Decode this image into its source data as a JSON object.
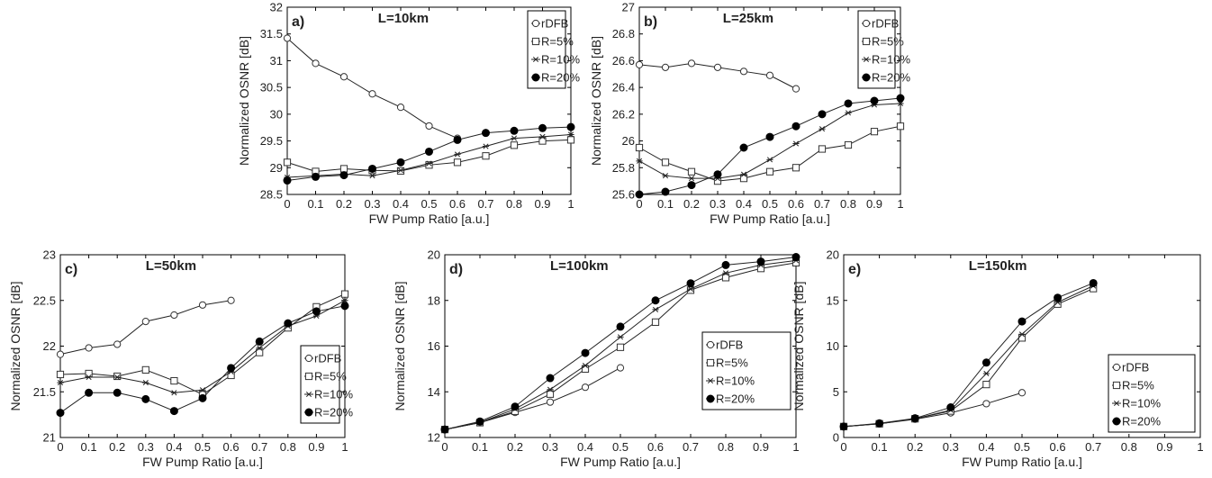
{
  "chart_data": [
    {
      "type": "line",
      "panel_label": "a)",
      "title": "L=10km",
      "xlabel": "FW Pump Ratio [a.u.]",
      "ylabel": "Normalized OSNR [dB]",
      "xlim": [
        0,
        1
      ],
      "ylim": [
        28.5,
        32
      ],
      "xticks": [
        "0",
        "0.1",
        "0.2",
        "0.3",
        "0.4",
        "0.5",
        "0.6",
        "0.7",
        "0.8",
        "0.9",
        "1"
      ],
      "yticks": [
        "28.5",
        "29",
        "29.5",
        "30",
        "30.5",
        "31",
        "31.5",
        "32"
      ],
      "grid": false,
      "legend_position": "top-right",
      "series": [
        {
          "name": "rDFB",
          "marker": "circle-open",
          "x": [
            0,
            0.1,
            0.2,
            0.3,
            0.4,
            0.5,
            0.6
          ],
          "y": [
            31.42,
            30.95,
            30.7,
            30.38,
            30.13,
            29.78,
            29.55
          ]
        },
        {
          "name": "R=5%",
          "marker": "square-open",
          "x": [
            0,
            0.1,
            0.2,
            0.3,
            0.4,
            0.5,
            0.6,
            0.7,
            0.8,
            0.9,
            1
          ],
          "y": [
            29.1,
            28.93,
            28.98,
            28.95,
            28.94,
            29.05,
            29.1,
            29.22,
            29.42,
            29.5,
            29.52
          ]
        },
        {
          "name": "R=10%",
          "marker": "star",
          "x": [
            0,
            0.1,
            0.2,
            0.3,
            0.4,
            0.5,
            0.6,
            0.7,
            0.8,
            0.9,
            1
          ],
          "y": [
            28.82,
            28.85,
            28.88,
            28.85,
            28.95,
            29.08,
            29.25,
            29.4,
            29.55,
            29.58,
            29.62
          ]
        },
        {
          "name": "R=20%",
          "marker": "circle-filled",
          "x": [
            0,
            0.1,
            0.2,
            0.3,
            0.4,
            0.5,
            0.6,
            0.7,
            0.8,
            0.9,
            1
          ],
          "y": [
            28.76,
            28.83,
            28.86,
            28.98,
            29.1,
            29.3,
            29.52,
            29.65,
            29.69,
            29.74,
            29.76
          ]
        }
      ]
    },
    {
      "type": "line",
      "panel_label": "b)",
      "title": "L=25km",
      "xlabel": "FW Pump Ratio [a.u.]",
      "ylabel": "Normalized OSNR [dB]",
      "xlim": [
        0,
        1
      ],
      "ylim": [
        25.6,
        27
      ],
      "xticks": [
        "0",
        "0.1",
        "0.2",
        "0.3",
        "0.4",
        "0.5",
        "0.6",
        "0.7",
        "0.8",
        "0.9",
        "1"
      ],
      "yticks": [
        "25.6",
        "25.8",
        "26",
        "26.2",
        "26.4",
        "26.6",
        "26.8",
        "27"
      ],
      "grid": false,
      "legend_position": "top-right",
      "series": [
        {
          "name": "rDFB",
          "marker": "circle-open",
          "x": [
            0,
            0.1,
            0.2,
            0.3,
            0.4,
            0.5,
            0.6
          ],
          "y": [
            26.57,
            26.55,
            26.58,
            26.55,
            26.52,
            26.49,
            26.39
          ]
        },
        {
          "name": "R=5%",
          "marker": "square-open",
          "x": [
            0,
            0.1,
            0.2,
            0.3,
            0.4,
            0.5,
            0.6,
            0.7,
            0.8,
            0.9,
            1
          ],
          "y": [
            25.95,
            25.84,
            25.77,
            25.7,
            25.72,
            25.77,
            25.8,
            25.94,
            25.97,
            26.07,
            26.11
          ]
        },
        {
          "name": "R=10%",
          "marker": "star",
          "x": [
            0,
            0.1,
            0.2,
            0.3,
            0.4,
            0.5,
            0.6,
            0.7,
            0.8,
            0.9,
            1
          ],
          "y": [
            25.85,
            25.74,
            25.72,
            25.72,
            25.75,
            25.86,
            25.98,
            26.09,
            26.21,
            26.27,
            26.28
          ]
        },
        {
          "name": "R=20%",
          "marker": "circle-filled",
          "x": [
            0,
            0.1,
            0.2,
            0.3,
            0.4,
            0.5,
            0.6,
            0.7,
            0.8,
            0.9,
            1
          ],
          "y": [
            25.6,
            25.62,
            25.67,
            25.75,
            25.95,
            26.03,
            26.11,
            26.2,
            26.28,
            26.3,
            26.32
          ]
        }
      ]
    },
    {
      "type": "line",
      "panel_label": "c)",
      "title": "L=50km",
      "xlabel": "FW Pump Ratio [a.u.]",
      "ylabel": "Normalized OSNR [dB]",
      "xlim": [
        0,
        1
      ],
      "ylim": [
        21,
        23
      ],
      "xticks": [
        "0",
        "0.1",
        "0.2",
        "0.3",
        "0.4",
        "0.5",
        "0.6",
        "0.7",
        "0.8",
        "0.9",
        "1"
      ],
      "yticks": [
        "21",
        "21.5",
        "22",
        "22.5",
        "23"
      ],
      "grid": false,
      "legend_position": "bottom-right",
      "series": [
        {
          "name": "rDFB",
          "marker": "circle-open",
          "x": [
            0,
            0.1,
            0.2,
            0.3,
            0.4,
            0.5,
            0.6
          ],
          "y": [
            21.91,
            21.98,
            22.02,
            22.27,
            22.34,
            22.45,
            22.5
          ]
        },
        {
          "name": "R=5%",
          "marker": "square-open",
          "x": [
            0,
            0.1,
            0.2,
            0.3,
            0.4,
            0.5,
            0.6,
            0.7,
            0.8,
            0.9,
            1
          ],
          "y": [
            21.69,
            21.7,
            21.67,
            21.74,
            21.62,
            21.47,
            21.68,
            21.93,
            22.2,
            22.43,
            22.57
          ]
        },
        {
          "name": "R=10%",
          "marker": "star",
          "x": [
            0,
            0.1,
            0.2,
            0.3,
            0.4,
            0.5,
            0.6,
            0.7,
            0.8,
            0.9,
            1
          ],
          "y": [
            21.6,
            21.66,
            21.66,
            21.6,
            21.49,
            21.52,
            21.72,
            21.98,
            22.22,
            22.33,
            22.5
          ]
        },
        {
          "name": "R=20%",
          "marker": "circle-filled",
          "x": [
            0,
            0.1,
            0.2,
            0.3,
            0.4,
            0.5,
            0.6,
            0.7,
            0.8,
            0.9,
            1
          ],
          "y": [
            21.27,
            21.49,
            21.49,
            21.42,
            21.29,
            21.43,
            21.76,
            22.05,
            22.25,
            22.38,
            22.44
          ]
        }
      ]
    },
    {
      "type": "line",
      "panel_label": "d)",
      "title": "L=100km",
      "xlabel": "FW Pump Ratio [a.u.]",
      "ylabel": "Normalized OSNR [dB]",
      "xlim": [
        0,
        1
      ],
      "ylim": [
        12,
        20
      ],
      "xticks": [
        "0",
        "0.1",
        "0.2",
        "0.3",
        "0.4",
        "0.5",
        "0.6",
        "0.7",
        "0.8",
        "0.9",
        "1"
      ],
      "yticks": [
        "12",
        "14",
        "16",
        "18",
        "20"
      ],
      "grid": false,
      "legend_position": "center-right",
      "series": [
        {
          "name": "rDFB",
          "marker": "circle-open",
          "x": [
            0,
            0.1,
            0.2,
            0.3,
            0.4,
            0.5
          ],
          "y": [
            12.35,
            12.65,
            13.1,
            13.55,
            14.2,
            15.05
          ]
        },
        {
          "name": "R=5%",
          "marker": "square-open",
          "x": [
            0,
            0.1,
            0.2,
            0.3,
            0.4,
            0.5,
            0.6,
            0.7,
            0.8,
            0.9,
            1
          ],
          "y": [
            12.35,
            12.65,
            13.15,
            13.9,
            15.0,
            15.95,
            17.05,
            18.45,
            19.0,
            19.4,
            19.65
          ]
        },
        {
          "name": "R=10%",
          "marker": "star",
          "x": [
            0,
            0.1,
            0.2,
            0.3,
            0.4,
            0.5,
            0.6,
            0.7,
            0.8,
            0.9,
            1
          ],
          "y": [
            12.35,
            12.65,
            13.25,
            14.1,
            15.15,
            16.4,
            17.6,
            18.5,
            19.2,
            19.55,
            19.75
          ]
        },
        {
          "name": "R=20%",
          "marker": "circle-filled",
          "x": [
            0,
            0.1,
            0.2,
            0.3,
            0.4,
            0.5,
            0.6,
            0.7,
            0.8,
            0.9,
            1
          ],
          "y": [
            12.35,
            12.7,
            13.35,
            14.6,
            15.7,
            16.85,
            18.0,
            18.75,
            19.55,
            19.7,
            19.9
          ]
        }
      ]
    },
    {
      "type": "line",
      "panel_label": "e)",
      "title": "L=150km",
      "xlabel": "FW Pump Ratio [a.u.]",
      "ylabel": "Normalized OSNR [dB]",
      "xlim": [
        0,
        1
      ],
      "ylim": [
        0,
        20
      ],
      "xticks": [
        "0",
        "0.1",
        "0.2",
        "0.3",
        "0.4",
        "0.5",
        "0.6",
        "0.7",
        "0.8",
        "0.9",
        "1"
      ],
      "yticks": [
        "0",
        "5",
        "10",
        "15",
        "20"
      ],
      "grid": false,
      "legend_position": "center-right",
      "series": [
        {
          "name": "rDFB",
          "marker": "circle-open",
          "x": [
            0,
            0.1,
            0.2,
            0.3,
            0.4,
            0.5
          ],
          "y": [
            1.2,
            1.5,
            2.0,
            2.7,
            3.7,
            4.9
          ]
        },
        {
          "name": "R=5%",
          "marker": "square-open",
          "x": [
            0,
            0.1,
            0.2,
            0.3,
            0.4,
            0.5,
            0.6,
            0.7
          ],
          "y": [
            1.2,
            1.5,
            2.05,
            2.9,
            5.8,
            10.9,
            14.6,
            16.3
          ]
        },
        {
          "name": "R=10%",
          "marker": "star",
          "x": [
            0,
            0.1,
            0.2,
            0.3,
            0.4,
            0.5,
            0.6,
            0.7
          ],
          "y": [
            1.2,
            1.5,
            2.05,
            3.0,
            7.0,
            11.3,
            14.8,
            16.6
          ]
        },
        {
          "name": "R=20%",
          "marker": "circle-filled",
          "x": [
            0,
            0.1,
            0.2,
            0.3,
            0.4,
            0.5,
            0.6,
            0.7
          ],
          "y": [
            1.2,
            1.55,
            2.1,
            3.3,
            8.2,
            12.7,
            15.3,
            16.9
          ]
        }
      ]
    }
  ]
}
